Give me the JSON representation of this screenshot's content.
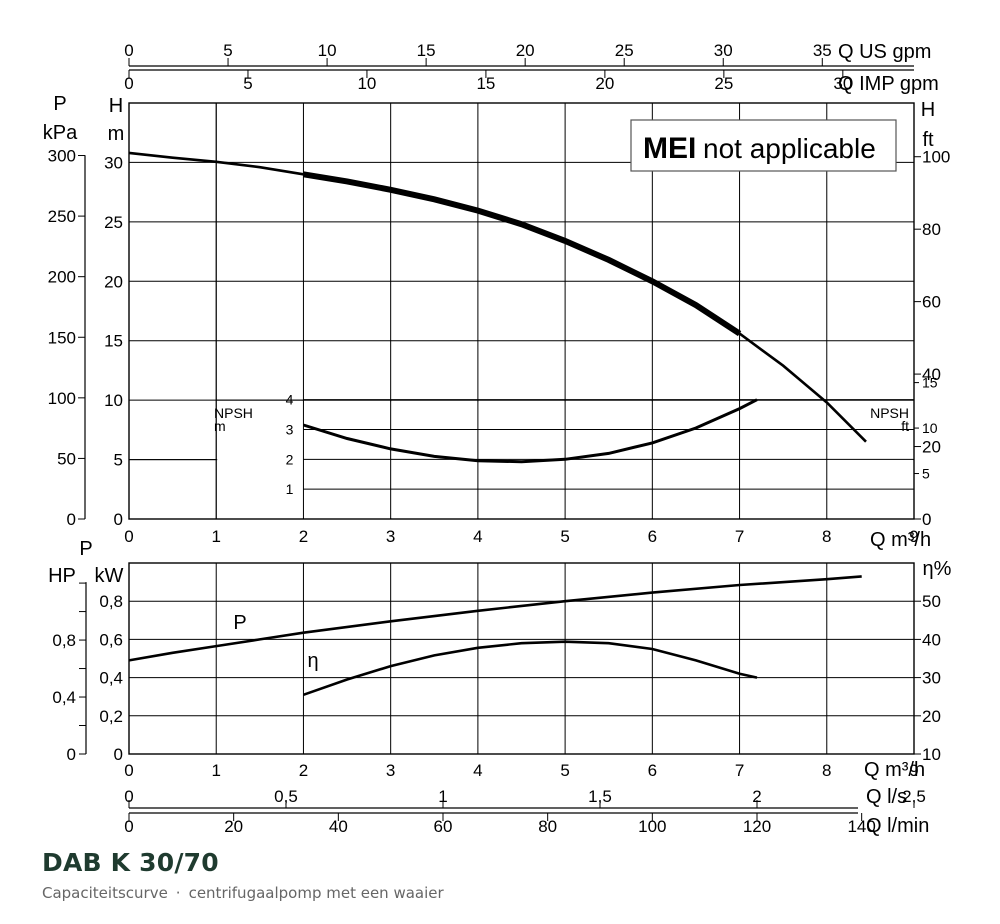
{
  "chart_data": {
    "type": "line",
    "flow_axis": {
      "label": "Q m³/h",
      "ticks": [
        "0",
        "1",
        "2",
        "3",
        "4",
        "5",
        "6",
        "7",
        "8",
        "9"
      ],
      "range": [
        0,
        9
      ],
      "grid": true
    },
    "top_axes": [
      {
        "label": "Q US gpm",
        "ticks": [
          "0",
          "5",
          "10",
          "15",
          "20",
          "25",
          "30",
          "35"
        ],
        "values": [
          0,
          5,
          10,
          15,
          20,
          25,
          30,
          35
        ],
        "m3h_per_unit": 0.2271
      },
      {
        "label": "Q IMP gpm",
        "ticks": [
          "0",
          "5",
          "10",
          "15",
          "20",
          "25",
          "30"
        ],
        "values": [
          0,
          5,
          10,
          15,
          20,
          25,
          30
        ],
        "m3h_per_unit": 0.2728
      }
    ],
    "bottom_axes": [
      {
        "label": "Q l/s",
        "ticks": [
          "0",
          "0,5",
          "1",
          "1,5",
          "2",
          "2,5"
        ],
        "values": [
          0,
          0.5,
          1,
          1.5,
          2,
          2.5
        ],
        "m3h_per_unit": 3.6
      },
      {
        "label": "Q l/min",
        "ticks": [
          "0",
          "20",
          "40",
          "60",
          "80",
          "100",
          "120",
          "140"
        ],
        "values": [
          0,
          20,
          40,
          60,
          80,
          100,
          120,
          140
        ],
        "m3h_per_unit": 0.06
      }
    ],
    "badge": {
      "bold": "MEI",
      "text": "not applicable"
    },
    "head_panel": {
      "left_axes": [
        {
          "label_top": "P",
          "label_bottom": "kPa",
          "ticks": [
            "0",
            "50",
            "100",
            "150",
            "200",
            "250",
            "300"
          ]
        },
        {
          "label_top": "H",
          "label_bottom": "m",
          "ticks": [
            "0",
            "5",
            "10",
            "15",
            "20",
            "25",
            "30"
          ]
        }
      ],
      "right_axis": {
        "label_top": "H",
        "label_bottom": "ft",
        "ticks": [
          "0",
          "20",
          "40",
          "60",
          "80",
          "100"
        ]
      },
      "ylim_m": [
        0,
        35
      ],
      "head_curve": {
        "points": [
          [
            0,
            30.8
          ],
          [
            0.5,
            30.4
          ],
          [
            1,
            30.05
          ],
          [
            1.5,
            29.6
          ],
          [
            2,
            29.0
          ],
          [
            2.5,
            28.4
          ],
          [
            3,
            27.7
          ],
          [
            3.5,
            26.9
          ],
          [
            4,
            25.95
          ],
          [
            4.5,
            24.8
          ],
          [
            5,
            23.4
          ],
          [
            5.5,
            21.8
          ],
          [
            6,
            20.0
          ],
          [
            6.5,
            18.0
          ],
          [
            7,
            15.6
          ],
          [
            7.5,
            12.9
          ],
          [
            8,
            9.8
          ],
          [
            8.45,
            6.5
          ]
        ],
        "operating_range": [
          2.0,
          7.2
        ]
      },
      "npsh": {
        "label_left": "NPSH",
        "unit_left": "m",
        "ticks_m": [
          "1",
          "2",
          "3",
          "4"
        ],
        "label_right": "NPSH",
        "unit_right": "ft",
        "ticks_ft": [
          "5",
          "10",
          "15"
        ],
        "curve": [
          [
            2,
            3.15
          ],
          [
            2.5,
            2.7
          ],
          [
            3,
            2.35
          ],
          [
            3.5,
            2.1
          ],
          [
            4,
            1.95
          ],
          [
            4.5,
            1.92
          ],
          [
            5,
            2.0
          ],
          [
            5.5,
            2.2
          ],
          [
            6,
            2.55
          ],
          [
            6.5,
            3.05
          ],
          [
            7,
            3.7
          ],
          [
            7.2,
            4.0
          ]
        ]
      }
    },
    "power_panel": {
      "left_axes": [
        {
          "label_top": "",
          "label": "HP",
          "ticks": [
            "0",
            "0,4",
            "0,8"
          ]
        },
        {
          "label_top": "P",
          "label": "kW",
          "ticks": [
            "0",
            "0,2",
            "0,4",
            "0,6",
            "0,8"
          ]
        }
      ],
      "right_axis": {
        "label": "η%",
        "ticks": [
          "10",
          "20",
          "30",
          "40",
          "50"
        ]
      },
      "ylim_kw": [
        0,
        1.0
      ],
      "series": [
        {
          "name": "P",
          "points": [
            [
              0,
              0.49
            ],
            [
              0.5,
              0.53
            ],
            [
              1,
              0.565
            ],
            [
              1.5,
              0.6
            ],
            [
              2,
              0.635
            ],
            [
              3,
              0.695
            ],
            [
              4,
              0.75
            ],
            [
              5,
              0.8
            ],
            [
              6,
              0.845
            ],
            [
              7,
              0.885
            ],
            [
              8,
              0.915
            ],
            [
              8.4,
              0.93
            ]
          ]
        },
        {
          "name": "η",
          "points_pct": [
            [
              2,
              25.5
            ],
            [
              2.5,
              29.5
            ],
            [
              3,
              33.0
            ],
            [
              3.5,
              35.8
            ],
            [
              4,
              37.8
            ],
            [
              4.5,
              39.0
            ],
            [
              5,
              39.4
            ],
            [
              5.5,
              39.0
            ],
            [
              6,
              37.5
            ],
            [
              6.5,
              34.5
            ],
            [
              7,
              31.0
            ],
            [
              7.2,
              30.0
            ]
          ]
        }
      ]
    }
  },
  "footer": {
    "title": "DAB K 30/70",
    "subtitle_left": "Capaciteitscurve",
    "subtitle_sep": "·",
    "subtitle_right": "centrifugaalpomp met een waaier"
  }
}
